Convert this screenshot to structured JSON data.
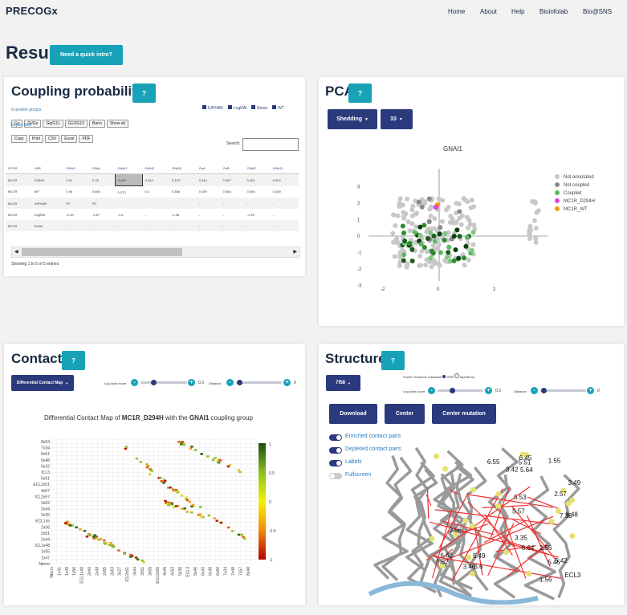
{
  "brand": "PRECOGx",
  "nav": [
    "Home",
    "About",
    "Help",
    "Bioinfolab",
    "Bio@SNS"
  ],
  "page_title": "Result",
  "intro_button": "Need a quick intro?",
  "help_label": "?",
  "coupling": {
    "title": "Coupling probabilites",
    "group_label": "G-protein groups",
    "group_buttons": [
      "Gs",
      "Gi/Go",
      "Gq/G11",
      "G12/G13",
      "Barrs",
      "Show all"
    ],
    "legend": [
      "IUPHAR",
      "LogRAi",
      "Emax",
      "WT"
    ],
    "export_label": "Export files",
    "export_buttons": [
      "Copy",
      "Print",
      "CSV",
      "Excel",
      "PDF"
    ],
    "search_label": "Search:",
    "columns": [
      "GPCR",
      "VAR",
      "GNAS",
      "GNAL",
      "GNAI1",
      "GNAI2",
      "GNAI3",
      "GoA",
      "GoB",
      "GNAZ",
      "GNA11"
    ],
    "rows": [
      [
        "MC1R",
        "D294H",
        "0.91",
        "0.78",
        "0.467",
        "0.344",
        "0.379",
        "0.344",
        "0.367",
        "0.401",
        "0.324"
      ],
      [
        "MC1R",
        "WT",
        "0.96",
        "0.854",
        "0.373",
        "0.5",
        "0.358",
        "0.159",
        "0.364",
        "0.394",
        "0.169"
      ],
      [
        "MC1R",
        "IUPHAR",
        "PC",
        "PC",
        "-",
        "-",
        "-",
        "-",
        "-",
        "-",
        "-"
      ],
      [
        "MC1R",
        "LogRAi",
        "-2.49",
        "-1.87",
        "-1.6",
        "-",
        "-1.38",
        "-",
        "-",
        "-1.39",
        "-"
      ],
      [
        "MC1R",
        "Emax",
        "-",
        "-",
        "-",
        "-",
        "-",
        "-",
        "-",
        "-",
        "-"
      ]
    ],
    "footer": "Showing 1 to 5 of 5 entries"
  },
  "pca": {
    "title": "PCA",
    "dropdown1": "Shedding",
    "dropdown2": "33",
    "plot_title": "GNAI1",
    "legend": [
      {
        "label": "Not annotated",
        "color": "#c8c8c8"
      },
      {
        "label": "Not coupled",
        "color": "#8a8a8a"
      },
      {
        "label": "Coupled",
        "color": "#5cb85c"
      },
      {
        "label": "MC1R_D294H",
        "color": "#e040e0"
      },
      {
        "label": "MC1R_WT",
        "color": "#f39c12"
      }
    ],
    "y_ticks": [
      "3",
      "2",
      "1",
      "0",
      "-1",
      "-2",
      "-3"
    ],
    "x_ticks": [
      "-2",
      "0",
      "2"
    ]
  },
  "contacts": {
    "title": "Contacts",
    "dropdown": "Differential Contact Map",
    "slider1_label": "Log odds score",
    "slider1_value": "0.3",
    "slider2_label": "Distance",
    "slider2_value": "0",
    "heatmap_title_pre": "Differential Contact Map of ",
    "heatmap_title_var": "MC1R_D294H",
    "heatmap_title_mid": " with the ",
    "heatmap_title_grp": "GNAI1",
    "heatmap_title_post": " coupling group",
    "y_labels": [
      "8x53",
      "7x34",
      "6x61",
      "6x48",
      "6x32",
      "ICL3",
      "5x51",
      "ECL2x51",
      "4x57",
      "ICL2x57",
      "3x52",
      "3x44",
      "3x35",
      "ECL1x5",
      "2x56",
      "2x51",
      "2x44",
      "ICL1x48",
      "1x55",
      "1x47",
      "Nterm"
    ],
    "x_labels": [
      "Nterm",
      "1x41",
      "1x49",
      "1x56",
      "ECL1x48",
      "2x40",
      "2x48",
      "2x55",
      "2x63",
      "3x27",
      "ICL2x51",
      "3x44",
      "3x51",
      "3x55",
      "ECL2x55",
      "4x45",
      "4x53",
      "5x38",
      "ECL3",
      "5x46",
      "6x40",
      "6x48",
      "6x56",
      "7x34",
      "7x48",
      "7x57",
      "8x48"
    ],
    "colorbar_ticks": [
      "1",
      "0.5",
      "0",
      "-0.5",
      "-1"
    ]
  },
  "structure": {
    "title": "Structure",
    "dropdown": "7f58",
    "radio_label": "Protein Structure Database",
    "radio_opts": [
      "PDB",
      "AlphaFold"
    ],
    "slider1_label": "Log odds score",
    "slider1_value": "0.3",
    "slider2_label": "Distance",
    "slider2_value": "0",
    "buttons": [
      "Download",
      "Center",
      "Center mutation"
    ],
    "toggles": [
      {
        "label": "Enriched contact pairs",
        "on": true
      },
      {
        "label": "Depleted contact pairs",
        "on": true
      },
      {
        "label": "Labels",
        "on": true
      },
      {
        "label": "Fullscreen",
        "on": false
      }
    ],
    "labels": [
      "6.6",
      "ECL3",
      "6.64",
      "6.55",
      "5.64",
      "5.51",
      "3.35",
      "3.42",
      "5.53",
      "3.46",
      "3.49",
      "5.42",
      "6.45",
      "5.49",
      "5.45",
      "3.56",
      "1.55",
      "2.56",
      "6.62",
      "7.35",
      "6.52",
      "1.56",
      "2.57",
      "6.48",
      "5.57"
    ]
  }
}
